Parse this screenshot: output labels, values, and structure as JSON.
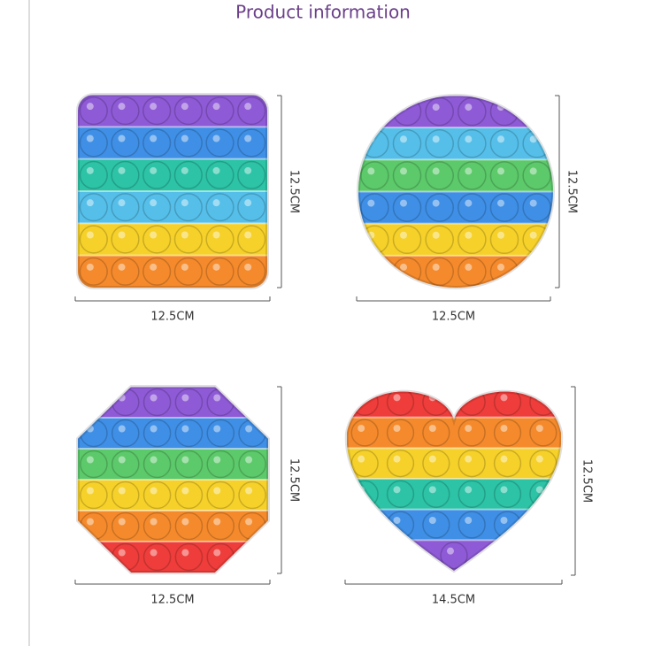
{
  "title": "Product information",
  "products": [
    {
      "width": "12.5CM",
      "height": "12.5CM"
    },
    {
      "width": "12.5CM",
      "height": "12.5CM"
    },
    {
      "width": "12.5CM",
      "height": "12.5CM"
    },
    {
      "width": "14.5CM",
      "height": "12.5CM"
    }
  ]
}
